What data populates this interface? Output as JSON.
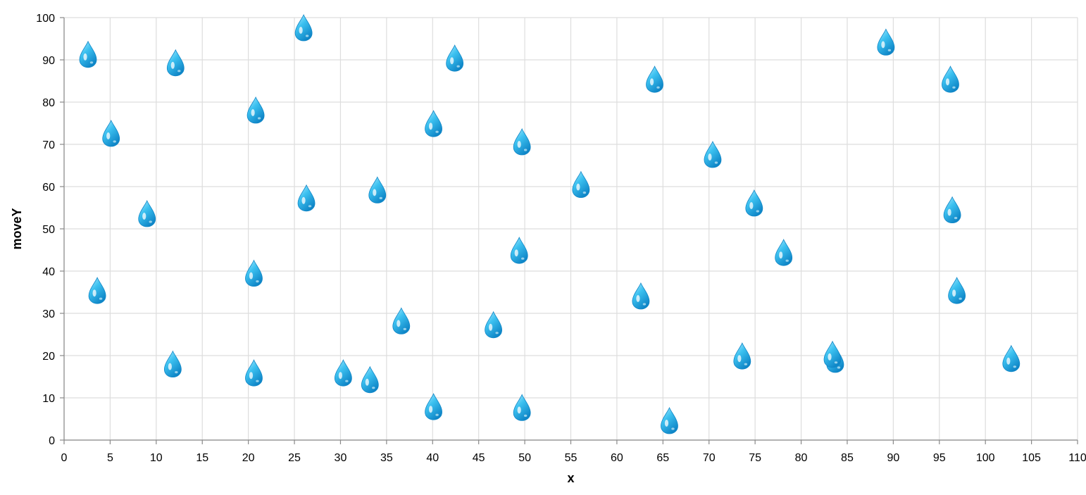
{
  "chart_data": {
    "type": "scatter",
    "mark": "water-drop-emoji",
    "xlabel": "x",
    "ylabel": "moveY",
    "xlim": [
      0,
      110
    ],
    "ylim": [
      0,
      100
    ],
    "x_ticks": [
      0,
      5,
      10,
      15,
      20,
      25,
      30,
      35,
      40,
      45,
      50,
      55,
      60,
      65,
      70,
      75,
      80,
      85,
      90,
      95,
      100,
      105,
      110
    ],
    "y_ticks": [
      0,
      10,
      20,
      30,
      40,
      50,
      60,
      70,
      80,
      90,
      100
    ],
    "grid": true,
    "colors": {
      "grid": "#dddddd",
      "axis": "#888888",
      "drop_light": "#b3ecff",
      "drop_mid": "#3cc1f0",
      "drop_dark": "#0f86c7"
    },
    "points": [
      {
        "x": 2.6,
        "y": 91.2
      },
      {
        "x": 5.1,
        "y": 72.5
      },
      {
        "x": 3.6,
        "y": 35.3
      },
      {
        "x": 9.0,
        "y": 53.5
      },
      {
        "x": 12.1,
        "y": 89.2
      },
      {
        "x": 11.8,
        "y": 17.9
      },
      {
        "x": 20.8,
        "y": 78.0
      },
      {
        "x": 20.6,
        "y": 39.4
      },
      {
        "x": 20.6,
        "y": 15.8
      },
      {
        "x": 26.0,
        "y": 97.5
      },
      {
        "x": 26.3,
        "y": 57.2
      },
      {
        "x": 30.3,
        "y": 15.8
      },
      {
        "x": 33.2,
        "y": 14.2
      },
      {
        "x": 34.0,
        "y": 59.1
      },
      {
        "x": 36.6,
        "y": 28.1
      },
      {
        "x": 40.1,
        "y": 74.8
      },
      {
        "x": 40.1,
        "y": 7.8
      },
      {
        "x": 42.4,
        "y": 90.3
      },
      {
        "x": 46.6,
        "y": 27.2
      },
      {
        "x": 49.4,
        "y": 44.8
      },
      {
        "x": 49.7,
        "y": 70.5
      },
      {
        "x": 49.7,
        "y": 7.6
      },
      {
        "x": 56.1,
        "y": 60.4
      },
      {
        "x": 62.6,
        "y": 34.0
      },
      {
        "x": 64.1,
        "y": 85.3
      },
      {
        "x": 65.7,
        "y": 4.5
      },
      {
        "x": 70.4,
        "y": 67.5
      },
      {
        "x": 73.6,
        "y": 19.8
      },
      {
        "x": 74.9,
        "y": 56.0
      },
      {
        "x": 78.1,
        "y": 44.3
      },
      {
        "x": 83.7,
        "y": 19.0
      },
      {
        "x": 83.4,
        "y": 20.2
      },
      {
        "x": 89.2,
        "y": 94.1
      },
      {
        "x": 96.2,
        "y": 85.3
      },
      {
        "x": 96.4,
        "y": 54.4
      },
      {
        "x": 96.9,
        "y": 35.3
      },
      {
        "x": 102.8,
        "y": 19.2
      }
    ]
  }
}
